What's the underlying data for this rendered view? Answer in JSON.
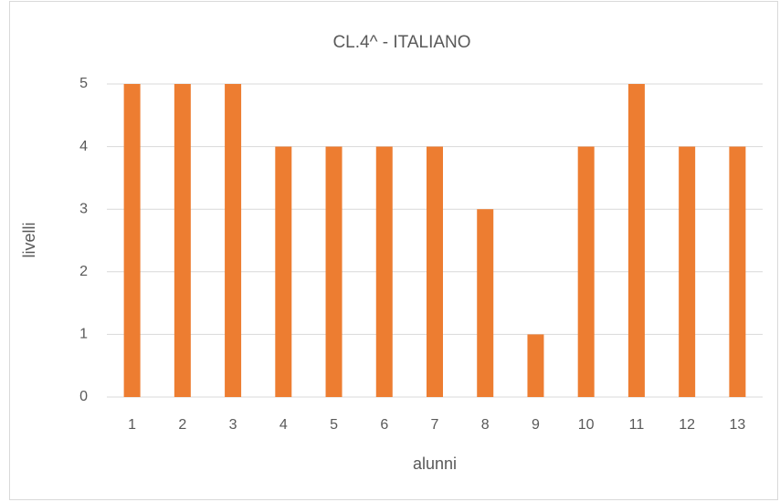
{
  "chart_data": {
    "type": "bar",
    "title": "CL.4^ - ITALIANO",
    "categories": [
      "1",
      "2",
      "3",
      "4",
      "5",
      "6",
      "7",
      "8",
      "9",
      "10",
      "11",
      "12",
      "13"
    ],
    "values": [
      5,
      5,
      5,
      4,
      4,
      4,
      4,
      3,
      1,
      4,
      5,
      4,
      4
    ],
    "color": "#ed7d31",
    "xlabel": "alunni",
    "ylabel": "livelli",
    "ylim": [
      0,
      5
    ],
    "yticks": [
      0,
      1,
      2,
      3,
      4,
      5
    ],
    "grid": true
  }
}
